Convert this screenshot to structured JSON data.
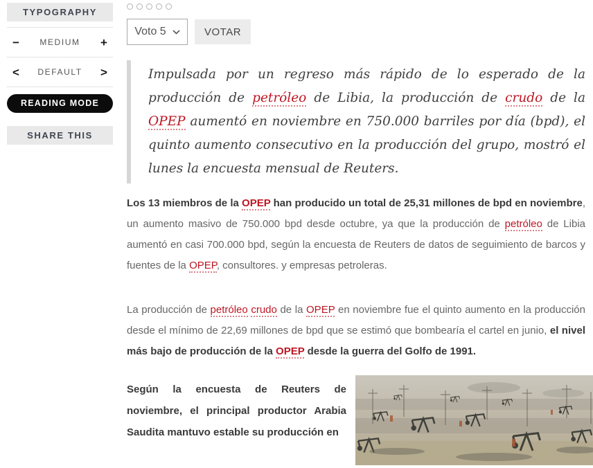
{
  "accent_color": "#bd1622",
  "sidebar": {
    "typography_label": "TYPOGRAPHY",
    "font_size": {
      "decrease": "−",
      "label": "MEDIUM",
      "increase": "+"
    },
    "font_style": {
      "prev": "<",
      "label": "DEFAULT",
      "next": ">"
    },
    "reading_mode_label": "READING MODE",
    "share_label": "SHARE THIS"
  },
  "vote": {
    "dots_count": 5,
    "select_value": "Voto 5",
    "button_label": "VOTAR"
  },
  "article": {
    "image_name": "oil-field-pump-jacks",
    "quote": {
      "segments": [
        {
          "t": "Impulsada por un regreso más rápido de lo esperado de la producción de ",
          "s": "plain"
        },
        {
          "t": "petróleo",
          "s": "link"
        },
        {
          "t": " de Libia, la producción de ",
          "s": "plain"
        },
        {
          "t": "crudo",
          "s": "link"
        },
        {
          "t": " de la ",
          "s": "plain"
        },
        {
          "t": "OPEP",
          "s": "link"
        },
        {
          "t": " aumentó en noviembre en 750.000 barriles por día (bpd), el quinto aumento consecutivo en la producción del grupo, mostró el lunes la encuesta mensual de Reuters.",
          "s": "plain"
        }
      ]
    },
    "p1": {
      "segments": [
        {
          "t": "Los 13 miembros de la ",
          "s": "bold"
        },
        {
          "t": "OPEP",
          "s": "boldlink"
        },
        {
          "t": " han producido un total de 25,31 millones de bpd en noviembre",
          "s": "bold"
        },
        {
          "t": ", un aumento masivo de 750.000 bpd desde octubre, ya que la producción de ",
          "s": "plain"
        },
        {
          "t": "petróleo",
          "s": "link"
        },
        {
          "t": " de Libia aumentó en casi 700.000 bpd, según la encuesta de Reuters de datos de seguimiento de barcos y fuentes de la ",
          "s": "plain"
        },
        {
          "t": "OPEP",
          "s": "link"
        },
        {
          "t": ", consultores. y empresas petroleras.",
          "s": "plain"
        }
      ]
    },
    "p2": {
      "segments": [
        {
          "t": "La producción de ",
          "s": "plain"
        },
        {
          "t": "petróleo",
          "s": "link"
        },
        {
          "t": " ",
          "s": "plain"
        },
        {
          "t": "crudo",
          "s": "link"
        },
        {
          "t": " de la ",
          "s": "plain"
        },
        {
          "t": "OPEP",
          "s": "link"
        },
        {
          "t": " en noviembre fue el quinto aumento en la producción desde el mínimo de 22,69 millones de bpd que se estimó que bombearía el cartel en junio, ",
          "s": "plain"
        },
        {
          "t": "el nivel más bajo de producción de la ",
          "s": "bold"
        },
        {
          "t": "OPEP",
          "s": "boldlink"
        },
        {
          "t": " desde la guerra del Golfo de 1991.",
          "s": "bold"
        }
      ]
    },
    "p3": {
      "segments": [
        {
          "t": "Según la encuesta de Reuters de noviembre, el principal productor Arabia Saudita mantuvo estable su producción en",
          "s": "bold"
        }
      ]
    }
  }
}
